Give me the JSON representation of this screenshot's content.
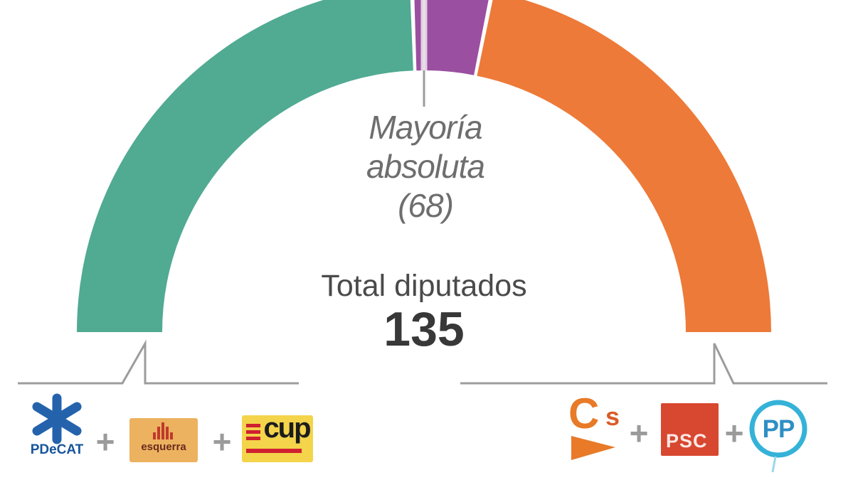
{
  "chart_data": {
    "type": "pie",
    "subtype": "half-donut-hemicycle",
    "categories": [
      "PDeCAT + Esquerra + CUP",
      "(unlabeled center segment)",
      "Cs + PSC + PP"
    ],
    "values": [
      66,
      10,
      59
    ],
    "colors": [
      "#51aa92",
      "#9b4fa0",
      "#ed7a38"
    ],
    "total": 135,
    "majority": 68,
    "title": "",
    "annotations": [
      "Mayoría absoluta (68)",
      "Total diputados",
      "135"
    ],
    "legend_position": "bottom"
  },
  "annotation": {
    "majority_line1": "Mayoría",
    "majority_line2": "absoluta",
    "majority_line3": "(68)"
  },
  "totals": {
    "label": "Total diputados",
    "value": "135"
  },
  "separator": {
    "plus": "+"
  },
  "parties": {
    "pdecat": {
      "label": "PDeCAT",
      "text_color": "#17549b",
      "star_color": "#2463ac"
    },
    "esquerra": {
      "label": "esquerra",
      "bg": "#ecb25f",
      "text_color": "#6b2a1e",
      "bars_color": "#c0392b"
    },
    "cup": {
      "label": "cup",
      "bg": "#f3d44a",
      "stripes_color": "#cf2030",
      "text_color": "#1c1c1c"
    },
    "cs": {
      "label_c": "C",
      "label_s": "s",
      "color": "#e87a28"
    },
    "psc": {
      "label": "PSC",
      "bg": "#d8472f",
      "text_color": "#ffffff"
    },
    "pp": {
      "label": "PP",
      "ring_color": "#35b2d8",
      "text_color": "#2e8fc4"
    }
  },
  "lines": {
    "color": "#9c9c9c"
  }
}
